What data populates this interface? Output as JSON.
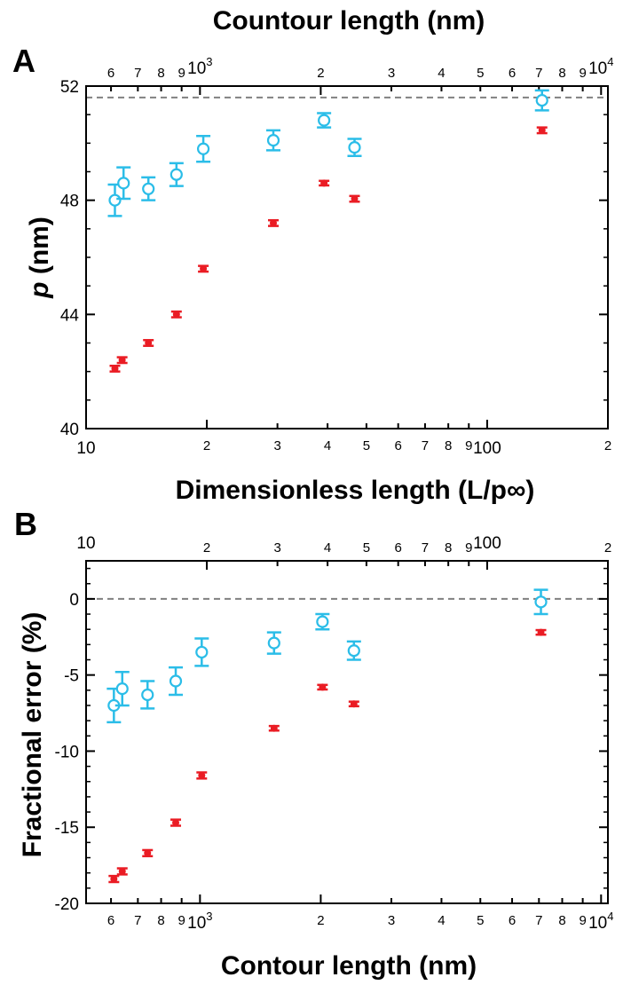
{
  "figure": {
    "panels": [
      "A",
      "B"
    ],
    "colors": {
      "series_1": "#ea1c24",
      "series_2": "#2bbde8",
      "reference": "#808080"
    }
  },
  "chart_data": [
    {
      "panel": "A",
      "type": "scatter",
      "top_xlabel": "Countour length (nm)",
      "xlabel": "Dimensionless length (L/p∞)",
      "ylabel_italic": "p",
      "ylabel_rest": " (nm)",
      "xscale": "log",
      "xlim": [
        10,
        200
      ],
      "ylim": [
        40,
        52
      ],
      "top_xlim": [
        520,
        10400
      ],
      "grid": false,
      "legend": "none",
      "y_ticks": [
        "40",
        "44",
        "48",
        "52"
      ],
      "y_tick_values": [
        40,
        44,
        48,
        52
      ],
      "reference_line": {
        "y": 51.6,
        "style": "dashed"
      },
      "series": [
        {
          "color": "#ea1c24",
          "marker": "filled-circle",
          "x": [
            11.8,
            12.3,
            14.3,
            16.8,
            19.6,
            29.3,
            39.2,
            46.7,
            137
          ],
          "y": [
            42.1,
            42.4,
            43.0,
            44.0,
            45.6,
            47.2,
            48.6,
            48.05,
            50.45
          ],
          "yerr": [
            0.1,
            0.1,
            0.1,
            0.1,
            0.1,
            0.1,
            0.08,
            0.1,
            0.1
          ]
        },
        {
          "color": "#2bbde8",
          "marker": "open-circle",
          "x": [
            11.8,
            12.4,
            14.3,
            16.8,
            19.6,
            29.3,
            39.2,
            46.7,
            137
          ],
          "y": [
            48.0,
            48.6,
            48.4,
            48.9,
            49.8,
            50.1,
            50.8,
            49.85,
            51.5
          ],
          "yerr": [
            0.55,
            0.55,
            0.4,
            0.4,
            0.45,
            0.35,
            0.25,
            0.3,
            0.35
          ]
        }
      ]
    },
    {
      "panel": "B",
      "type": "scatter",
      "xlabel": "Contour length (nm)",
      "ylabel": "Fractional error (%)",
      "xscale": "log",
      "xlim": [
        520,
        10400
      ],
      "ylim": [
        -20,
        2.5
      ],
      "top_xlim": [
        10,
        200
      ],
      "grid": false,
      "legend": "none",
      "y_ticks": [
        "-20",
        "-15",
        "-10",
        "-5",
        "0"
      ],
      "y_tick_values": [
        -20,
        -15,
        -10,
        -5,
        0
      ],
      "reference_line": {
        "y": 0,
        "style": "dashed"
      },
      "series": [
        {
          "color": "#ea1c24",
          "marker": "filled-circle",
          "x": [
            610,
            640,
            740,
            870,
            1010,
            1530,
            2020,
            2420,
            7080
          ],
          "y": [
            -18.4,
            -17.9,
            -16.7,
            -14.7,
            -11.6,
            -8.5,
            -5.8,
            -6.9,
            -2.2
          ],
          "yerr": [
            0.2,
            0.2,
            0.2,
            0.2,
            0.2,
            0.15,
            0.15,
            0.15,
            0.15
          ]
        },
        {
          "color": "#2bbde8",
          "marker": "open-circle",
          "x": [
            610,
            640,
            740,
            870,
            1010,
            1530,
            2020,
            2420,
            7080
          ],
          "y": [
            -7.0,
            -5.9,
            -6.3,
            -5.4,
            -3.5,
            -2.9,
            -1.5,
            -3.4,
            -0.2
          ],
          "yerr": [
            1.1,
            1.1,
            0.9,
            0.9,
            0.9,
            0.7,
            0.5,
            0.6,
            0.8
          ]
        }
      ]
    }
  ],
  "tick_labels": {
    "a_top": [
      "6",
      "7",
      "8",
      "9",
      "10",
      "2",
      "3",
      "4",
      "5",
      "6",
      "7",
      "8",
      "9",
      "10"
    ],
    "a_top_exp": [
      "3",
      "4"
    ],
    "a_bottom": [
      "10",
      "2",
      "3",
      "4",
      "5",
      "6",
      "7",
      "8",
      "9",
      "100",
      "2"
    ],
    "b_top": [
      "10",
      "2",
      "3",
      "4",
      "5",
      "6",
      "7",
      "8",
      "9",
      "100",
      "2"
    ],
    "b_bottom": [
      "6",
      "7",
      "8",
      "9",
      "10",
      "2",
      "3",
      "4",
      "5",
      "6",
      "7",
      "8",
      "9",
      "10"
    ],
    "b_bottom_exp": [
      "3",
      "4"
    ]
  }
}
